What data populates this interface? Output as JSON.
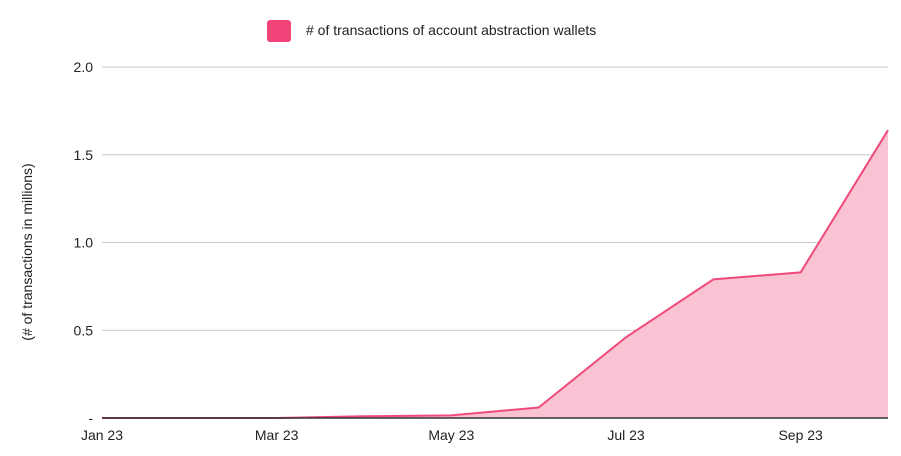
{
  "colors": {
    "series_line": "#ee4a7a",
    "series_fill": "#f9c3d3",
    "legend_swatch": "#f14478",
    "baseline": "#333333"
  },
  "chart_data": {
    "type": "area",
    "title": "",
    "xlabel": "",
    "ylabel": "(# of transactions in millions)",
    "ylim": [
      0,
      2.0
    ],
    "yticks": [
      0,
      0.5,
      1.0,
      1.5,
      2.0
    ],
    "ytick_labels": [
      "-",
      "0.5",
      "1.0",
      "1.5",
      "2.0"
    ],
    "xticks": [
      "Jan 23",
      "Mar 23",
      "May 23",
      "Jul 23",
      "Sep 23"
    ],
    "grid": true,
    "legend_position": "top",
    "x": [
      "Jan 23",
      "Feb 23",
      "Mar 23",
      "Apr 23",
      "May 23",
      "Jun 23",
      "Jul 23",
      "Aug 23",
      "Sep 23",
      "Oct 23"
    ],
    "series": [
      {
        "name": "# of transactions of account abstraction wallets",
        "values": [
          0.0,
          0.0,
          0.0,
          0.01,
          0.015,
          0.06,
          0.46,
          0.79,
          0.83,
          1.64
        ]
      }
    ]
  }
}
